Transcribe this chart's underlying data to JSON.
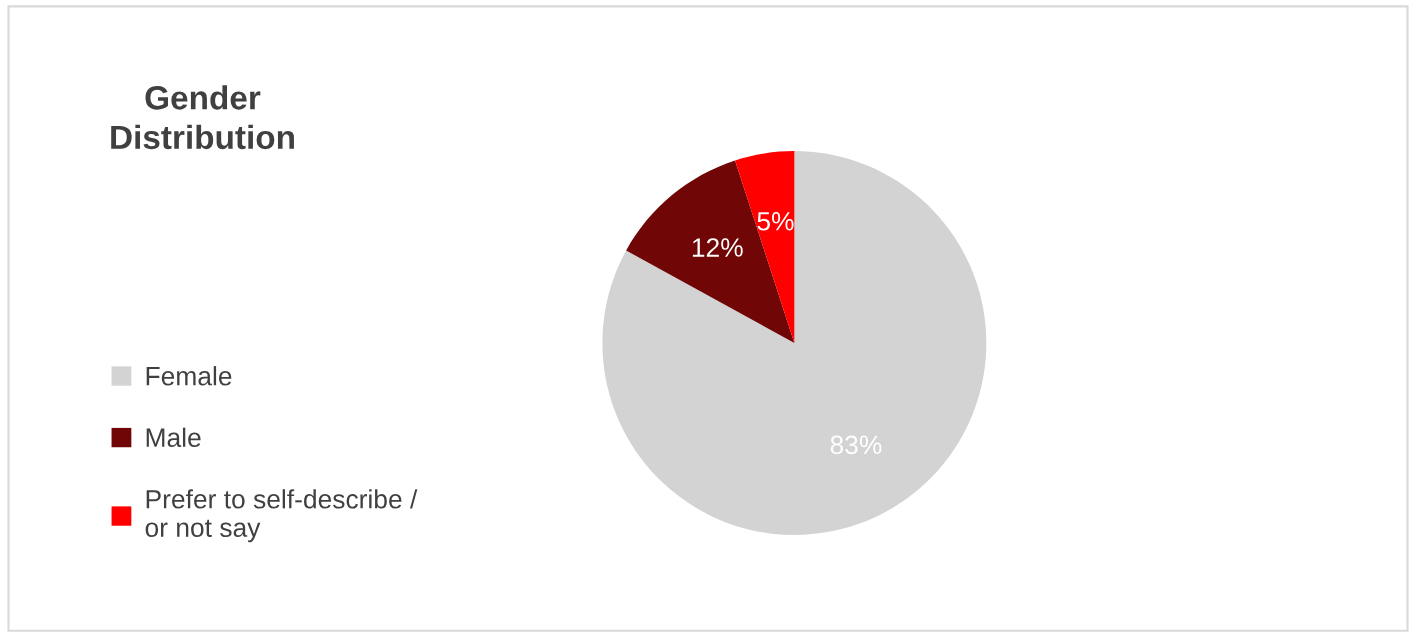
{
  "chart_data": {
    "type": "pie",
    "title": "Gender Distribution",
    "categories": [
      "Female",
      "Male",
      "Prefer to self-describe / or not say"
    ],
    "values": [
      83,
      12,
      5
    ],
    "colors": [
      "#d3d3d3",
      "#700606",
      "#ff0000"
    ],
    "value_labels": [
      "83%",
      "12%",
      "5%"
    ],
    "legend": "left"
  }
}
